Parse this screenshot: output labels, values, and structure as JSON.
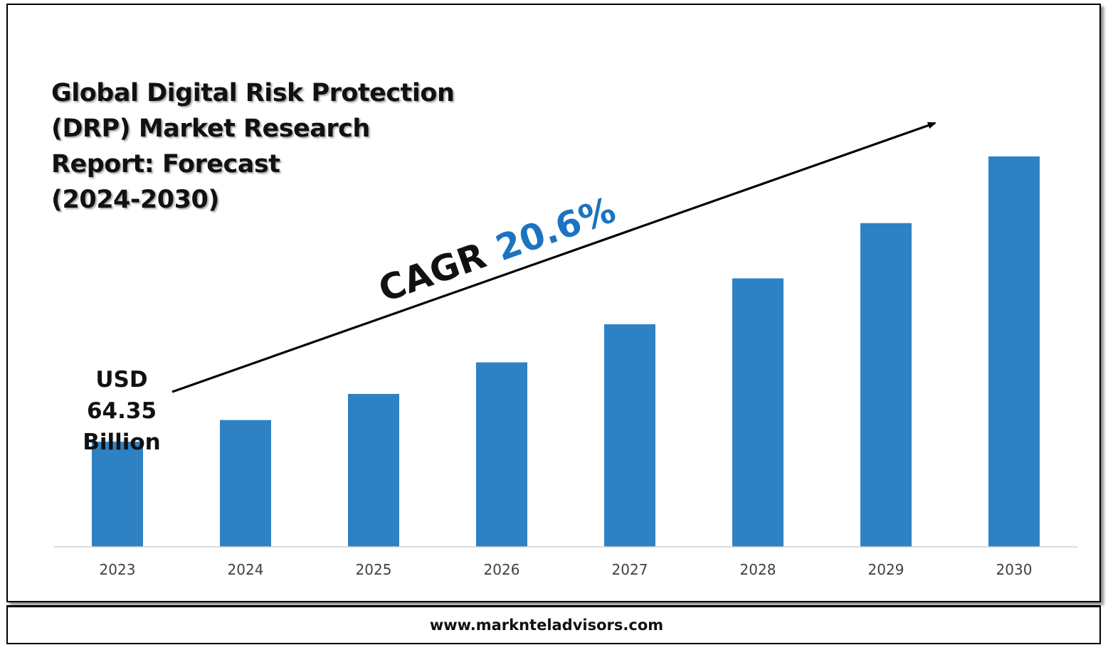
{
  "title": "Global Digital Risk Protection\n(DRP) Market Research\nReport: Forecast\n(2024-2030)",
  "annotation": {
    "start_value_label": "USD\n64.35\nBillion",
    "cagr_prefix": "CAGR",
    "cagr_value": "20.6%"
  },
  "footer": {
    "url": "www.marknteladvisors.com"
  },
  "colors": {
    "bar": "#2e82c4",
    "cagr_value": "#1b74c0",
    "text": "#111111"
  },
  "chart_data": {
    "type": "bar",
    "categories": [
      "2023",
      "2024",
      "2025",
      "2026",
      "2027",
      "2028",
      "2029",
      "2030"
    ],
    "values": [
      64.35,
      77.6,
      93.6,
      112.9,
      136.2,
      164.3,
      198.1,
      238.9
    ],
    "unit": "USD Billion",
    "ylim": [
      0,
      250
    ],
    "grid": false,
    "legend": "none"
  }
}
